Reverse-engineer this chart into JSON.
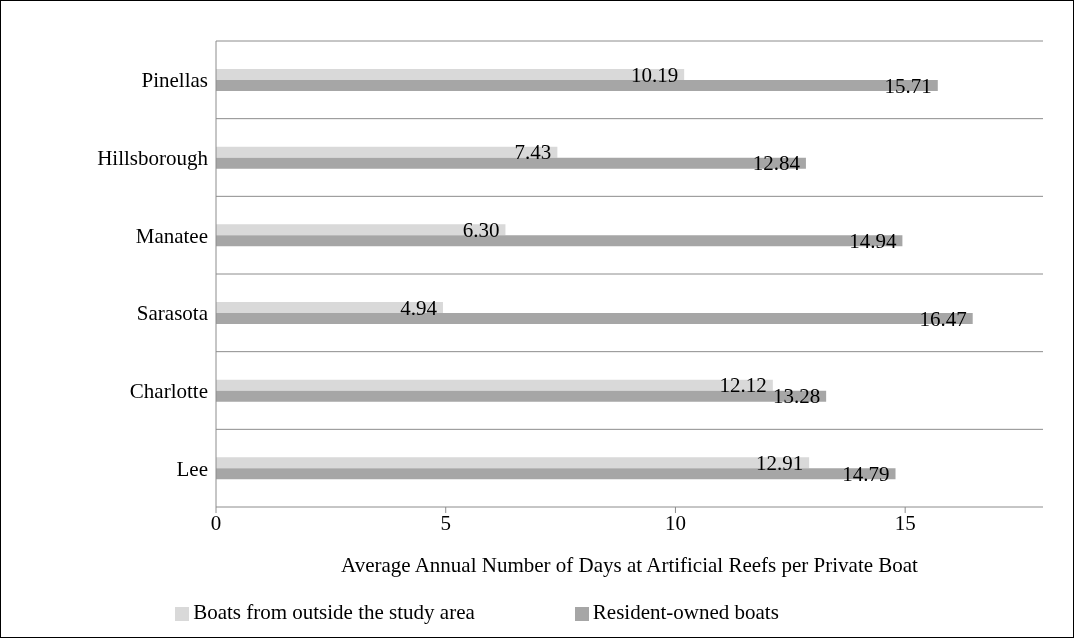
{
  "chart_data": {
    "type": "bar",
    "orientation": "horizontal",
    "xlabel": "Average Annual Number of Days at Artificial Reefs per Private Boat",
    "categories": [
      "Pinellas",
      "Hillsborough",
      "Manatee",
      "Sarasota",
      "Charlotte",
      "Lee"
    ],
    "series": [
      {
        "name": "Boats from outside the study area",
        "color": "#d9d9d9",
        "values": [
          10.19,
          7.43,
          6.3,
          4.94,
          12.12,
          12.91
        ],
        "value_labels": [
          "10.19",
          "7.43",
          "6.30",
          "4.94",
          "12.12",
          "12.91"
        ]
      },
      {
        "name": "Resident-owned boats",
        "color": "#a6a6a6",
        "values": [
          15.71,
          12.84,
          14.94,
          16.47,
          13.28,
          14.79
        ],
        "value_labels": [
          "15.71",
          "12.84",
          "14.94",
          "16.47",
          "13.28",
          "14.79"
        ]
      }
    ],
    "xlim": [
      0,
      18
    ],
    "xticks": [
      0,
      5,
      10,
      15
    ],
    "grid": "y",
    "legend": "bottom"
  }
}
